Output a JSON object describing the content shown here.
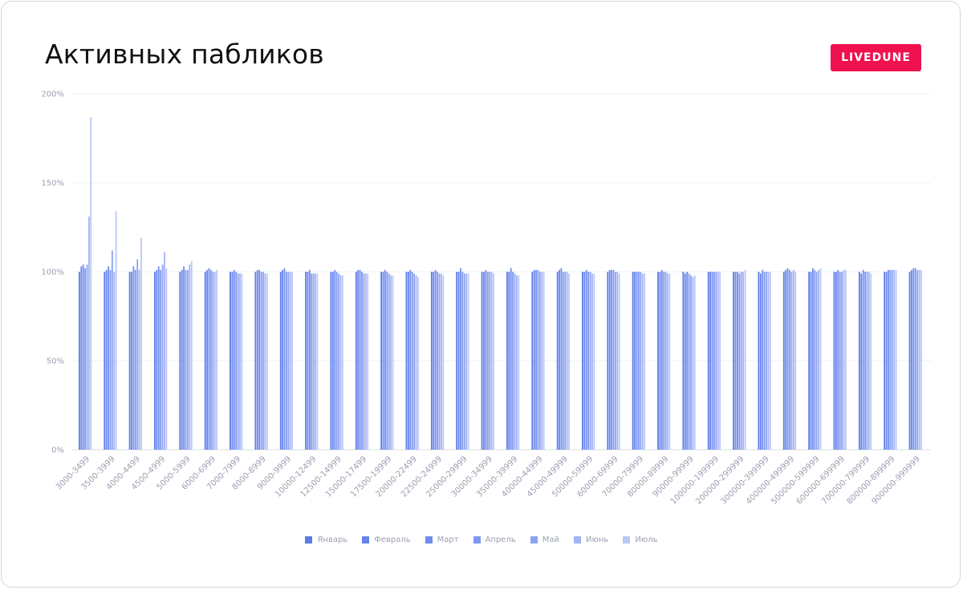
{
  "header": {
    "title": "Активных пабликов",
    "brand_label": "LIVEDUNE",
    "brand_color": "#f0114f"
  },
  "chart_data": {
    "type": "bar",
    "title": "Активных пабликов",
    "xlabel": "",
    "ylabel": "",
    "ylim": [
      0,
      200
    ],
    "yticks": [
      "0%",
      "50%",
      "100%",
      "150%",
      "200%"
    ],
    "ytick_values": [
      0,
      50,
      100,
      150,
      200
    ],
    "grid": true,
    "legend_position": "bottom",
    "categories": [
      "3000-3499",
      "3500-3999",
      "4000-4499",
      "4500-4999",
      "5000-5999",
      "6000-6999",
      "7000-7999",
      "8000-8999",
      "9000-9999",
      "10000-12499",
      "12500-14999",
      "15000-17499",
      "17500-19999",
      "20000-22499",
      "22500-24999",
      "25000-29999",
      "30000-34999",
      "35000-39999",
      "40000-44999",
      "45000-49999",
      "50000-59999",
      "60000-69999",
      "70000-79999",
      "80000-89999",
      "90000-99999",
      "100000-199999",
      "200000-299999",
      "300000-399999",
      "400000-499999",
      "500000-599999",
      "600000-699999",
      "700000-799999",
      "800000-899999",
      "900000-999999"
    ],
    "series": [
      {
        "name": "Январь",
        "color": "#5b7bea",
        "values": [
          100,
          100,
          100,
          100,
          100,
          100,
          100,
          100,
          100,
          100,
          100,
          100,
          100,
          100,
          100,
          100,
          100,
          100,
          100,
          100,
          100,
          100,
          100,
          100,
          100,
          100,
          100,
          100,
          100,
          100,
          100,
          100,
          100,
          100
        ]
      },
      {
        "name": "Февраль",
        "color": "#6683ec",
        "values": [
          103,
          101,
          100,
          101,
          101,
          101,
          100,
          101,
          101,
          100,
          100,
          101,
          100,
          100,
          100,
          100,
          100,
          100,
          101,
          101,
          100,
          101,
          100,
          100,
          99,
          100,
          100,
          99,
          101,
          100,
          100,
          99,
          100,
          101
        ]
      },
      {
        "name": "Март",
        "color": "#718cee",
        "values": [
          104,
          103,
          103,
          103,
          103,
          102,
          101,
          101,
          102,
          101,
          101,
          101,
          101,
          101,
          101,
          102,
          101,
          102,
          101,
          102,
          101,
          101,
          100,
          101,
          100,
          100,
          100,
          101,
          102,
          102,
          101,
          101,
          101,
          102
        ]
      },
      {
        "name": "Апрель",
        "color": "#7f97f0",
        "values": [
          102,
          101,
          101,
          101,
          101,
          101,
          100,
          100,
          100,
          99,
          100,
          100,
          100,
          100,
          100,
          100,
          100,
          100,
          101,
          100,
          100,
          101,
          100,
          100,
          99,
          100,
          99,
          100,
          101,
          101,
          100,
          100,
          101,
          102
        ]
      },
      {
        "name": "Май",
        "color": "#8da3f2",
        "values": [
          104,
          112,
          107,
          104,
          101,
          100,
          99,
          100,
          100,
          99,
          99,
          99,
          99,
          99,
          99,
          99,
          100,
          99,
          100,
          100,
          100,
          100,
          100,
          100,
          98,
          100,
          100,
          100,
          100,
          100,
          100,
          100,
          101,
          101
        ]
      },
      {
        "name": "Июнь",
        "color": "#a3b4f4",
        "values": [
          131,
          100,
          101,
          111,
          104,
          100,
          99,
          99,
          100,
          99,
          98,
          99,
          98,
          98,
          99,
          99,
          100,
          98,
          100,
          100,
          99,
          100,
          99,
          99,
          97,
          100,
          100,
          100,
          101,
          101,
          101,
          100,
          101,
          101
        ]
      },
      {
        "name": "Июль",
        "color": "#b9c7f7",
        "values": [
          187,
          134,
          119,
          102,
          106,
          101,
          99,
          99,
          100,
          99,
          98,
          99,
          98,
          97,
          98,
          99,
          99,
          98,
          100,
          99,
          99,
          99,
          99,
          99,
          98,
          100,
          101,
          100,
          100,
          102,
          101,
          99,
          101,
          101
        ]
      }
    ]
  }
}
